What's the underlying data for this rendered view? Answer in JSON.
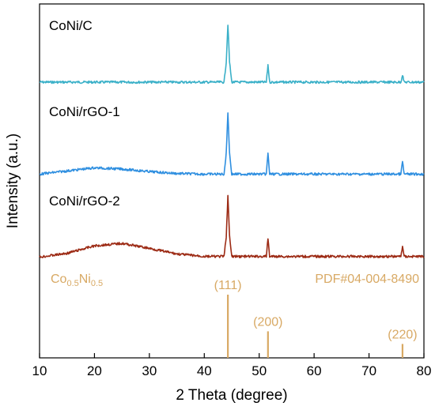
{
  "chart_data": {
    "type": "line",
    "xlabel": "2 Theta (degree)",
    "ylabel": "Intensity (a.u.)",
    "xlim": [
      10,
      80
    ],
    "x_ticks": [
      "10",
      "20",
      "30",
      "40",
      "50",
      "60",
      "70",
      "80"
    ],
    "y_ticks": "none",
    "grid": false,
    "legend": "none",
    "series": [
      {
        "name": "CoNi/C",
        "color": "#3ab0c8",
        "baseline": 0.94,
        "points": [
          [
            10,
            0
          ],
          [
            20,
            0
          ],
          [
            30,
            0
          ],
          [
            40,
            0
          ],
          [
            43.6,
            0
          ],
          [
            44.0,
            0.35
          ],
          [
            44.3,
            1
          ],
          [
            44.6,
            0.35
          ],
          [
            45.0,
            0
          ],
          [
            51.3,
            0
          ],
          [
            51.6,
            0.3
          ],
          [
            51.9,
            0
          ],
          [
            75.8,
            0
          ],
          [
            76.1,
            0.13
          ],
          [
            76.4,
            0
          ],
          [
            80,
            0
          ]
        ]
      },
      {
        "name": "CoNi/rGO-1",
        "color": "#2f8fe0",
        "baseline": 1.0,
        "points": [
          [
            10,
            0.02
          ],
          [
            15,
            0.07
          ],
          [
            20,
            0.12
          ],
          [
            25,
            0.1
          ],
          [
            30,
            0.06
          ],
          [
            35,
            0.03
          ],
          [
            40,
            0.02
          ],
          [
            43.6,
            0.02
          ],
          [
            44.0,
            0.35
          ],
          [
            44.3,
            1
          ],
          [
            44.6,
            0.35
          ],
          [
            45.0,
            0.02
          ],
          [
            51.3,
            0.02
          ],
          [
            51.6,
            0.35
          ],
          [
            51.9,
            0.02
          ],
          [
            75.8,
            0.02
          ],
          [
            76.1,
            0.22
          ],
          [
            76.4,
            0.02
          ],
          [
            80,
            0.02
          ]
        ]
      },
      {
        "name": "CoNi/rGO-2",
        "color": "#9c2a14",
        "baseline": 1.0,
        "points": [
          [
            10,
            0.02
          ],
          [
            15,
            0.08
          ],
          [
            20,
            0.2
          ],
          [
            25,
            0.24
          ],
          [
            30,
            0.16
          ],
          [
            35,
            0.07
          ],
          [
            40,
            0.03
          ],
          [
            43.6,
            0.03
          ],
          [
            44.0,
            0.35
          ],
          [
            44.3,
            1
          ],
          [
            44.6,
            0.35
          ],
          [
            45.0,
            0.03
          ],
          [
            51.3,
            0.03
          ],
          [
            51.6,
            0.32
          ],
          [
            51.9,
            0.03
          ],
          [
            75.8,
            0.03
          ],
          [
            76.1,
            0.2
          ],
          [
            76.4,
            0.03
          ],
          [
            80,
            0.03
          ]
        ]
      }
    ],
    "reference": {
      "phase_main": "Co",
      "phase_sub1": "0.5",
      "phase_mid": "Ni",
      "phase_sub2": "0.5",
      "card": "PDF#04-004-8490",
      "color": "#d8a964",
      "lines": [
        {
          "x": 44.3,
          "hkl": "(111)",
          "intensity": 1.0
        },
        {
          "x": 51.6,
          "hkl": "(200)",
          "intensity": 0.42
        },
        {
          "x": 76.1,
          "hkl": "(220)",
          "intensity": 0.22
        }
      ]
    }
  }
}
